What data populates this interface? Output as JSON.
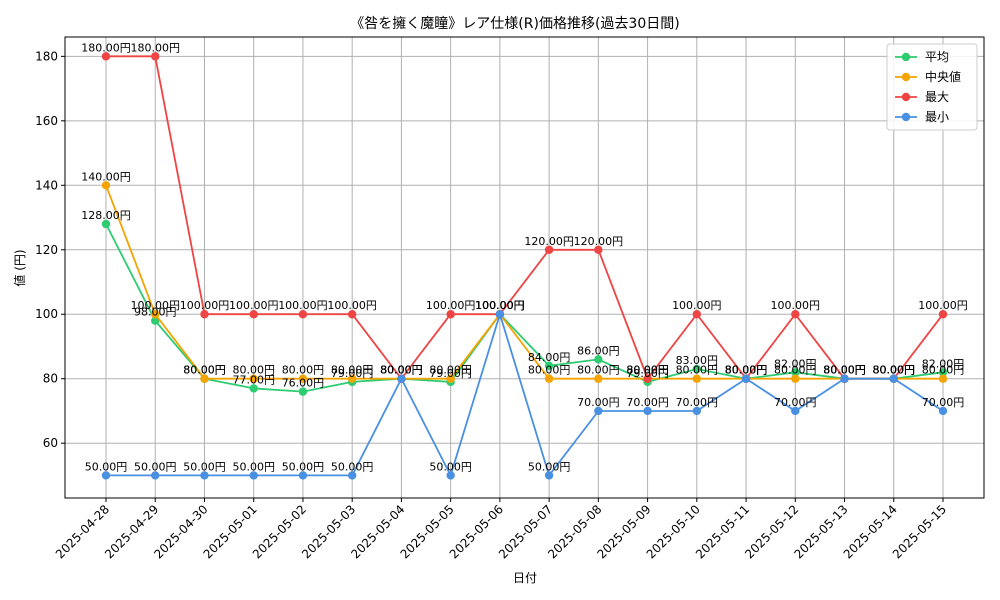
{
  "chart_data": {
    "type": "line",
    "title": "《咎を擁く魔瞳》レア仕様(R)価格推移(過去30日間)",
    "xlabel": "日付",
    "ylabel": "値 (円)",
    "ylim": [
      43,
      186
    ],
    "yticks": [
      60,
      80,
      100,
      120,
      140,
      160,
      180
    ],
    "grid": true,
    "legend_position": "top-right",
    "label_suffix": "円",
    "categories": [
      "2025-04-28",
      "2025-04-29",
      "2025-04-30",
      "2025-05-01",
      "2025-05-02",
      "2025-05-03",
      "2025-05-04",
      "2025-05-05",
      "2025-05-06",
      "2025-05-07",
      "2025-05-08",
      "2025-05-09",
      "2025-05-10",
      "2025-05-11",
      "2025-05-12",
      "2025-05-13",
      "2025-05-14",
      "2025-05-15"
    ],
    "series": [
      {
        "name": "平均",
        "color": "#2ecc71",
        "values": [
          128,
          98,
          80,
          77,
          76,
          79,
          80,
          79,
          100,
          84,
          86,
          79,
          83,
          80,
          82,
          80,
          80,
          82
        ]
      },
      {
        "name": "中央値",
        "color": "#f5a300",
        "values": [
          140,
          100,
          80,
          80,
          80,
          80,
          80,
          80,
          100,
          80,
          80,
          80,
          80,
          80,
          80,
          80,
          80,
          80
        ]
      },
      {
        "name": "最大",
        "color": "#ef4444",
        "values": [
          180,
          180,
          100,
          100,
          100,
          100,
          80,
          100,
          100,
          120,
          120,
          80,
          100,
          80,
          100,
          80,
          80,
          100
        ]
      },
      {
        "name": "最小",
        "color": "#4a90e2",
        "values": [
          50,
          50,
          50,
          50,
          50,
          50,
          80,
          50,
          100,
          50,
          70,
          70,
          70,
          80,
          70,
          80,
          80,
          70
        ]
      }
    ]
  }
}
